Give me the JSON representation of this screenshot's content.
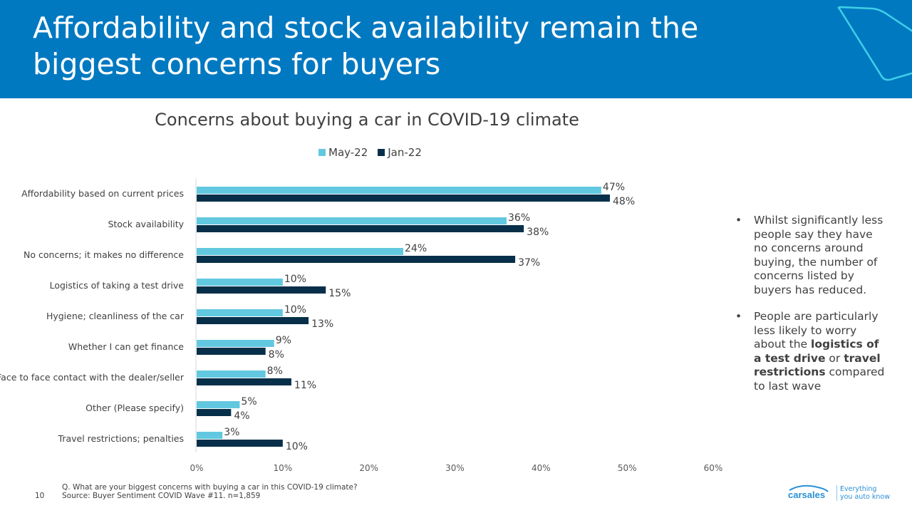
{
  "header": {
    "title": "Affordability and stock availability remain the biggest concerns for buyers",
    "background": "#0079c1"
  },
  "chart_data": {
    "type": "bar",
    "orientation": "horizontal",
    "title": "Concerns about buying a car in COVID-19 climate",
    "categories": [
      "Affordability based on current prices",
      "Stock availability",
      "No concerns; it makes no difference",
      "Logistics of taking a test drive",
      "Hygiene; cleanliness of the car",
      "Whether I can get finance",
      "Face to face contact with the dealer/seller",
      "Other (Please specify)",
      "Travel restrictions; penalties"
    ],
    "series": [
      {
        "name": "May-22",
        "color": "#62c8e0",
        "values": [
          47,
          36,
          24,
          10,
          10,
          9,
          8,
          5,
          3
        ],
        "labels": [
          "47%",
          "36%",
          "24%",
          "10%",
          "10%",
          "9%",
          "8%",
          "5%",
          "3%"
        ]
      },
      {
        "name": "Jan-22",
        "color": "#072f4a",
        "values": [
          48,
          38,
          37,
          15,
          13,
          8,
          11,
          4,
          10
        ],
        "labels": [
          "48%",
          "38%",
          "37%",
          "15%",
          "13%",
          "8%",
          "11%",
          "4%",
          "10%"
        ]
      }
    ],
    "xlim": [
      0,
      60
    ],
    "xticks": [
      "0%",
      "10%",
      "20%",
      "30%",
      "40%",
      "50%",
      "60%"
    ],
    "legend": "top",
    "grid": false
  },
  "bullets": [
    {
      "parts": [
        {
          "t": "Whilst significantly less people say they have no concerns around buying, the number of concerns listed by buyers has reduced.",
          "b": false
        }
      ]
    },
    {
      "parts": [
        {
          "t": "People are particularly less likely to worry about the ",
          "b": false
        },
        {
          "t": "logistics of a test drive",
          "b": true
        },
        {
          "t": " or ",
          "b": false
        },
        {
          "t": "travel restrictions",
          "b": true
        },
        {
          "t": " compared to last wave",
          "b": false
        }
      ]
    }
  ],
  "footer": {
    "question": "Q. What are your biggest concerns with buying a car in this COVID-19 climate?",
    "source": "Source: Buyer Sentiment COVID Wave #11. n=1,859",
    "page": "10",
    "logo": "carsales",
    "tagline1": "Everything",
    "tagline2": "you auto know"
  }
}
